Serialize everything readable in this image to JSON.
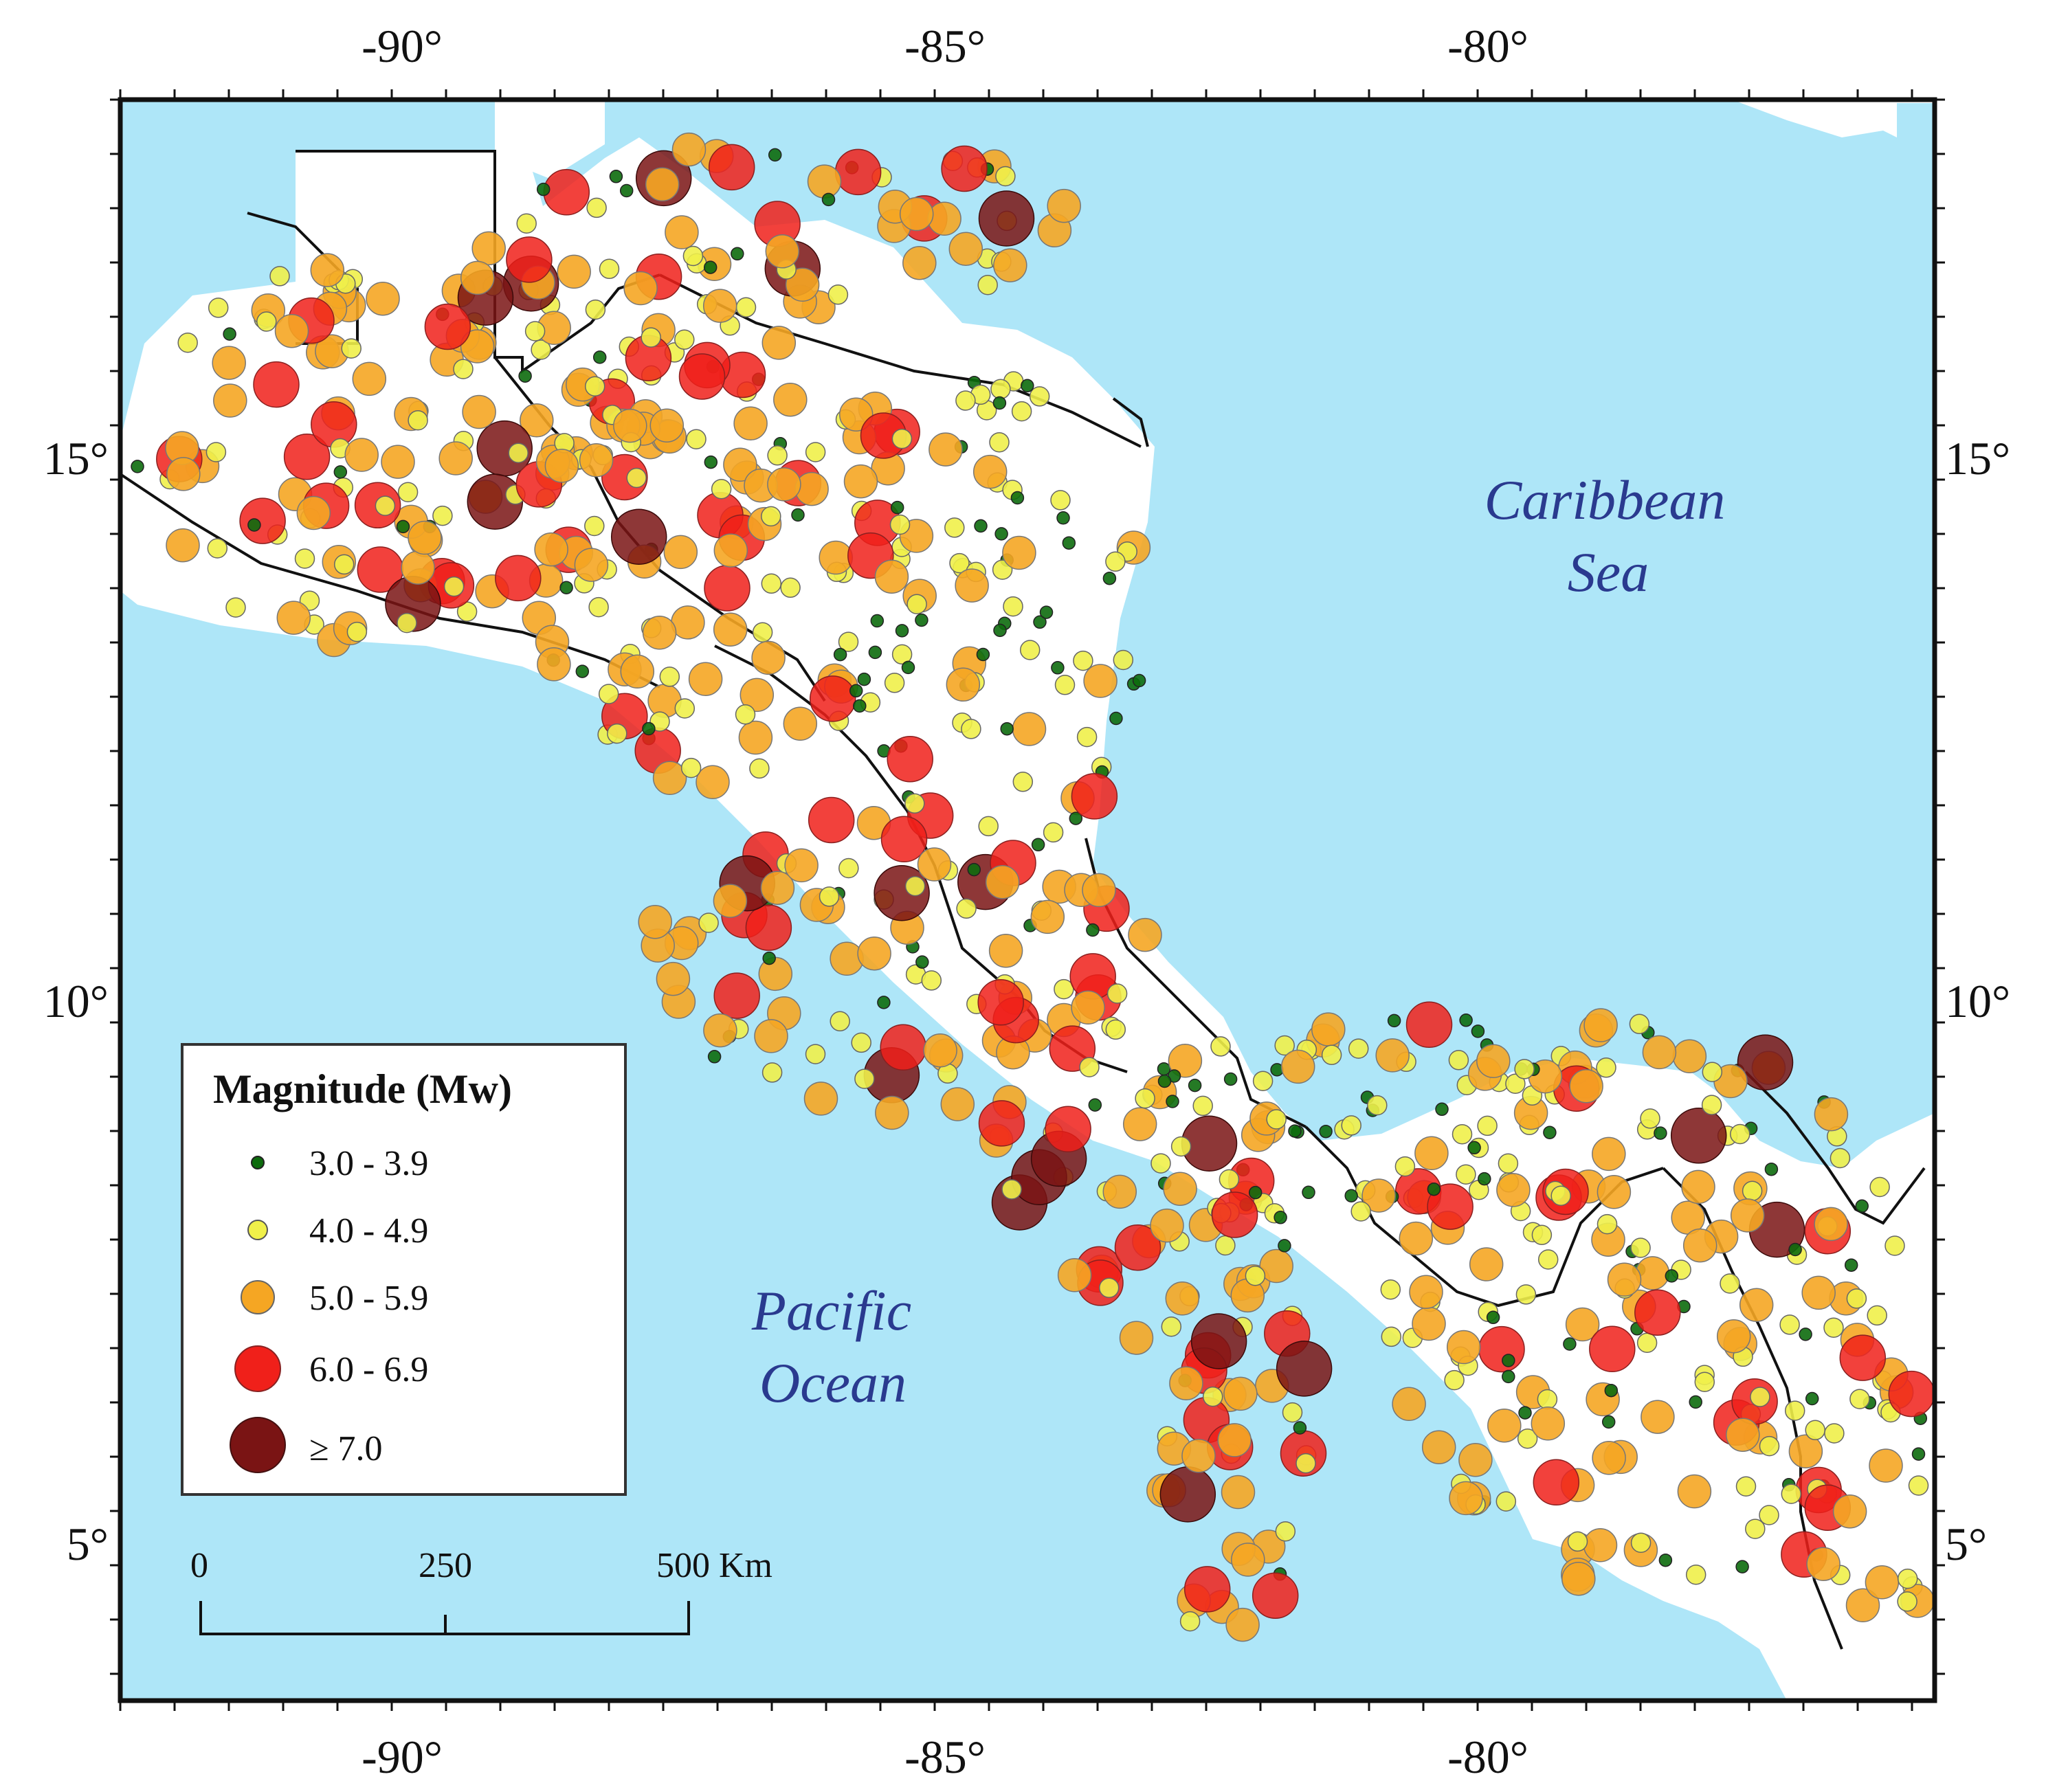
{
  "map": {
    "lon_ticks": [
      "-90°",
      "-85°",
      "-80°"
    ],
    "lat_ticks": [
      "15°",
      "10°",
      "5°"
    ],
    "sea_labels": {
      "caribbean_line1": "Caribbean",
      "caribbean_line2": "Sea",
      "pacific_line1": "Pacific",
      "pacific_line2": "Ocean"
    },
    "colors": {
      "water": "#aee6f8",
      "land": "#ffffff",
      "border": "#111111"
    }
  },
  "legend": {
    "title": "Magnitude (Mw)",
    "items": [
      {
        "label": "3.0 - 3.9",
        "color": "#0d6b0d"
      },
      {
        "label": "4.0 - 4.9",
        "color": "#f0f04a"
      },
      {
        "label": "5.0 - 5.9",
        "color": "#f5a623"
      },
      {
        "label": "6.0 - 6.9",
        "color": "#f0201a"
      },
      {
        "label": "≥ 7.0",
        "color": "#7a1414"
      }
    ]
  },
  "scale_bar": {
    "labels": [
      "0",
      "250",
      "500 Km"
    ]
  }
}
